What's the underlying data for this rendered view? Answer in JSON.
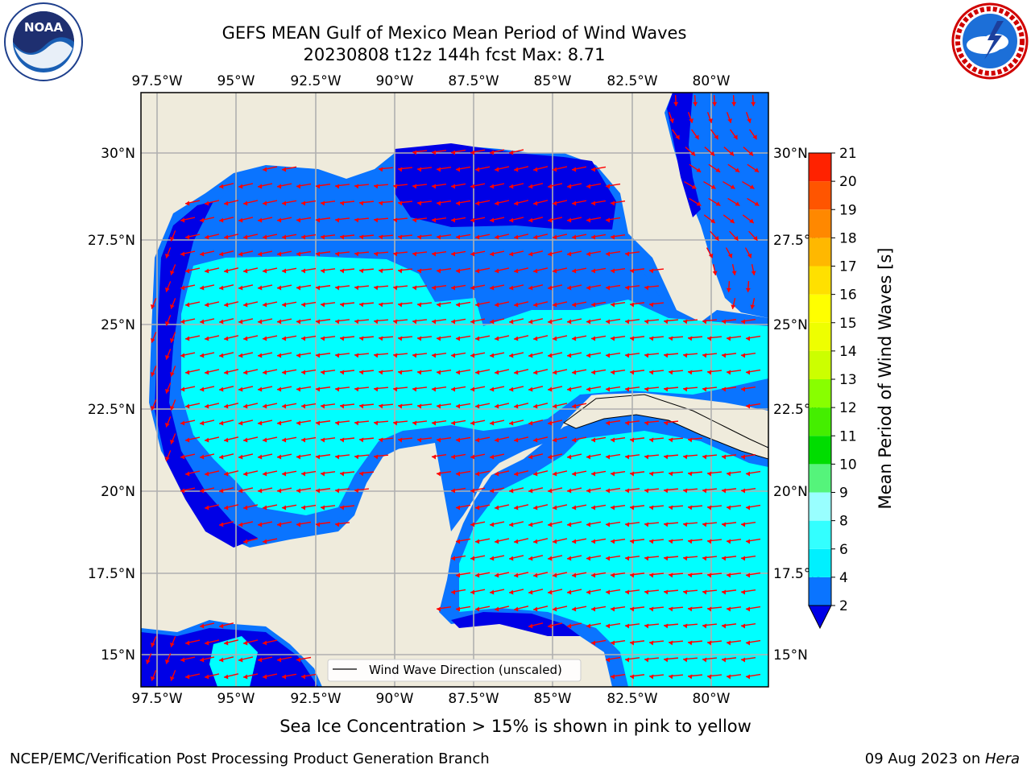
{
  "header": {
    "title_line1": "GEFS MEAN Gulf of Mexico Mean Period of Wind Waves",
    "title_line2": "20230808 t12z 144h fcst   Max: 8.71"
  },
  "logos": {
    "left": "noaa-logo",
    "right": "national-weather-service-logo"
  },
  "map": {
    "lon_labels": [
      "97.5°W",
      "95°W",
      "92.5°W",
      "90°W",
      "87.5°W",
      "85°W",
      "82.5°W",
      "80°W"
    ],
    "lat_labels_left": [
      "30°N",
      "27.5°N",
      "25°N",
      "22.5°N",
      "20°N",
      "17.5°N",
      "15°N"
    ],
    "lat_labels_right": [
      "30°N",
      "27.5°N",
      "25°N",
      "22.5°N",
      "20°N",
      "17.5°N",
      "15°N"
    ],
    "legend_label": "Wind Wave Direction (unscaled)",
    "colors": {
      "land": "#efebdc",
      "water_dark": "#0000e6",
      "water_mid": "#0a74ff",
      "water_light": "#00ffff",
      "water_pale": "#66fffa",
      "arrow": "#ff0000"
    }
  },
  "colorbar": {
    "label": "Mean Period of Wind Waves [s]",
    "ticks": [
      "2",
      "4",
      "6",
      "8",
      "9",
      "10",
      "11",
      "12",
      "13",
      "14",
      "15",
      "16",
      "17",
      "18",
      "19",
      "20",
      "21"
    ],
    "colors": [
      "#0a74ff",
      "#00f0ff",
      "#33ffff",
      "#99ffff",
      "#55f47b",
      "#00dd00",
      "#44ee00",
      "#88ff00",
      "#ccff00",
      "#eeff00",
      "#ffff00",
      "#ffe000",
      "#ffb800",
      "#ff8800",
      "#ff5500",
      "#ff2200"
    ]
  },
  "footer": {
    "note": "Sea Ice Concentration > 15% is shown in pink to yellow",
    "credit_left": "NCEP/EMC/Verification Post Processing Product Generation Branch",
    "date": "09 Aug 2023 on ",
    "machine": "Hera"
  }
}
